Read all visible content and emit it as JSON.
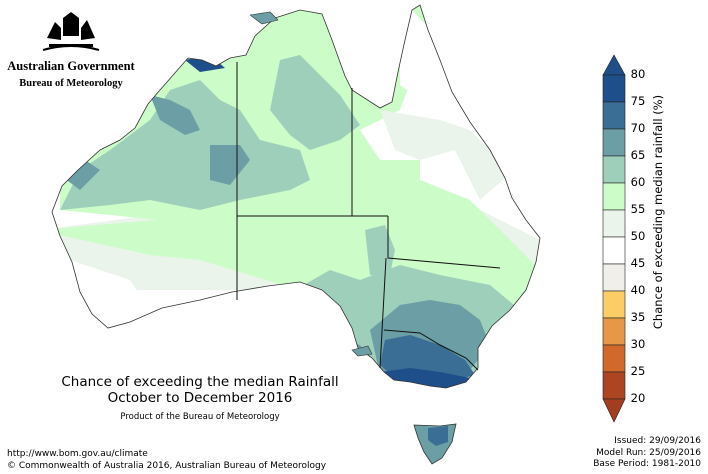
{
  "government": {
    "name": "Australian Government",
    "bureau": "Bureau of Meteorology"
  },
  "title": {
    "line1": "Chance of exceeding the median Rainfall",
    "line2": "October to December 2016",
    "product": "Product of the Bureau of Meteorology"
  },
  "footer": {
    "url": "http://www.bom.gov.au/climate",
    "copyright": "© Commonwealth of Australia 2016, Australian Bureau of Meteorology",
    "issued": "Issued: 29/09/2016",
    "model_run": "Model Run: 25/09/2016",
    "base_period": "Base Period: 1981-2010"
  },
  "colorbar": {
    "title": "Chance of exceeding median rainfall (%)",
    "ticks": [
      "80",
      "75",
      "70",
      "65",
      "60",
      "55",
      "50",
      "45",
      "40",
      "35",
      "30",
      "25",
      "20"
    ],
    "colors": [
      "#1e4f8a",
      "#3b6e95",
      "#6b9fa5",
      "#9ecfbb",
      "#ccfcc8",
      "#eaf4ea",
      "#ffffff",
      "#f0efea",
      "#fccc66",
      "#e69846",
      "#d1682c",
      "#ad4422"
    ],
    "top_color": "#1e4f8a",
    "bottom_color": "#a23d1e"
  }
}
